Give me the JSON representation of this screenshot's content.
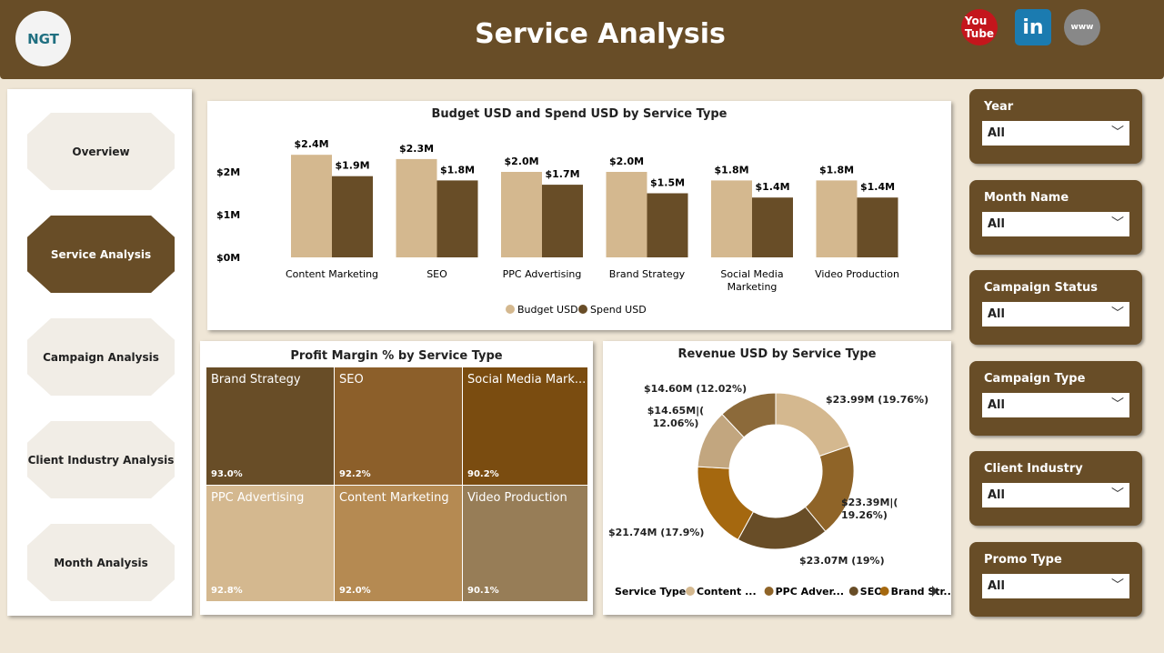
{
  "header": {
    "title": "Service Analysis",
    "logo_text": "NGT",
    "social": [
      "youtube-icon",
      "linkedin-icon",
      "website-icon"
    ]
  },
  "nav": [
    {
      "label": "Overview"
    },
    {
      "label": "Service Analysis",
      "active": true
    },
    {
      "label": "Campaign Analysis"
    },
    {
      "label": "Client Industry Analysis"
    },
    {
      "label": "Month Analysis"
    }
  ],
  "filters": [
    {
      "label": "Year",
      "value": "All"
    },
    {
      "label": "Month Name",
      "value": "All"
    },
    {
      "label": "Campaign Status",
      "value": "All"
    },
    {
      "label": "Campaign Type",
      "value": "All"
    },
    {
      "label": "Client Industry",
      "value": "All"
    },
    {
      "label": "Promo Type",
      "value": "All"
    }
  ],
  "chart_data": [
    {
      "type": "bar",
      "title": "Budget USD and Spend USD by Service Type",
      "categories": [
        "Content Marketing",
        "SEO",
        "PPC Advertising",
        "Brand Strategy",
        "Social Media Marketing",
        "Video Production"
      ],
      "series": [
        {
          "name": "Budget USD",
          "values": [
            2.4,
            2.3,
            2.0,
            2.0,
            1.8,
            1.8
          ],
          "labels": [
            "$2.4M",
            "$2.3M",
            "$2.0M",
            "$2.0M",
            "$1.8M",
            "$1.8M"
          ],
          "color": "#d4b88f"
        },
        {
          "name": "Spend USD",
          "values": [
            1.9,
            1.8,
            1.7,
            1.5,
            1.4,
            1.4
          ],
          "labels": [
            "$1.9M",
            "$1.8M",
            "$1.7M",
            "$1.5M",
            "$1.4M",
            "$1.4M"
          ],
          "color": "#684d27"
        }
      ],
      "yticks": [
        "$0M",
        "$1M",
        "$2M"
      ],
      "ylim": [
        0,
        2.6
      ],
      "legend": "bottom"
    },
    {
      "type": "treemap",
      "title": "Profit Margin % by Service Type",
      "items": [
        {
          "name": "Brand Strategy",
          "value": "93.0%",
          "color": "#684d27"
        },
        {
          "name": "SEO",
          "value": "92.2%",
          "color": "#8c5f2a"
        },
        {
          "name": "Social Media Mark...",
          "value": "90.2%",
          "color": "#7a4c10"
        },
        {
          "name": "PPC Advertising",
          "value": "92.8%",
          "color": "#d4b88f"
        },
        {
          "name": "Content Marketing",
          "value": "92.0%",
          "color": "#b58a52"
        },
        {
          "name": "Video Production",
          "value": "90.1%",
          "color": "#977d57"
        }
      ]
    },
    {
      "type": "pie",
      "title": "Revenue USD by Service Type",
      "slices": [
        {
          "value": 23.99,
          "label": "$23.99M (19.76%)",
          "color": "#d4b88f"
        },
        {
          "value": 23.39,
          "label": "$23.39M|(19.26%)",
          "color": "#8f6428"
        },
        {
          "value": 23.07,
          "label": "$23.07M (19%)",
          "color": "#684d27"
        },
        {
          "value": 21.74,
          "label": "$21.74M (17.9%)",
          "color": "#a5680f"
        },
        {
          "value": 14.65,
          "label": "$14.65M|(12.06%)",
          "color": "#c2a67f"
        },
        {
          "value": 14.6,
          "label": "$14.60M (12.02%)",
          "color": "#8c6a3a"
        }
      ],
      "legend_title": "Service Type",
      "legend": [
        {
          "name": "Content ...",
          "color": "#d4b88f"
        },
        {
          "name": "PPC Adver...",
          "color": "#8f6428"
        },
        {
          "name": "SEO",
          "color": "#684d27"
        },
        {
          "name": "Brand Str...",
          "color": "#a5680f"
        }
      ]
    }
  ]
}
